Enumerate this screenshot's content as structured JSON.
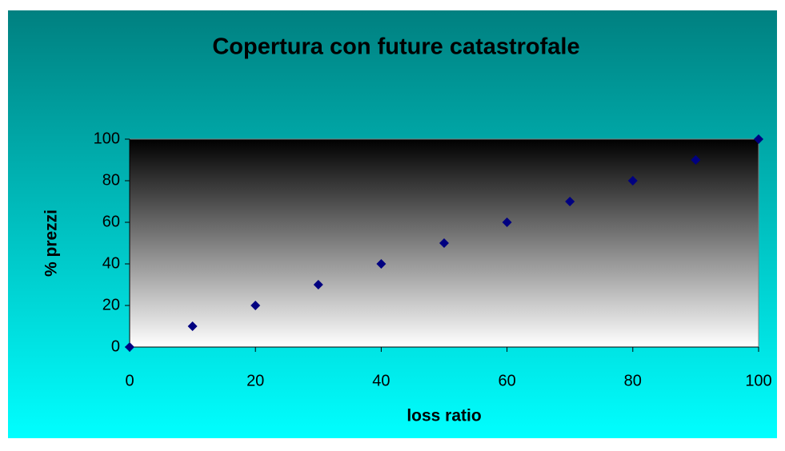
{
  "chart_data": {
    "type": "scatter",
    "title": "Copertura con future catastrofale",
    "x_label": "loss ratio",
    "y_label": "% prezzi",
    "x": [
      0,
      10,
      20,
      30,
      40,
      50,
      60,
      70,
      80,
      90,
      100
    ],
    "series": [
      {
        "color": "#000080",
        "values": [
          0,
          10,
          20,
          30,
          40,
          50,
          60,
          70,
          80,
          90,
          100
        ]
      }
    ],
    "xlim": [
      0,
      100
    ],
    "xticks": [
      0,
      20,
      40,
      60,
      80,
      100
    ],
    "ylim": [
      0,
      100
    ],
    "yticks": [
      0,
      20,
      40,
      60,
      80,
      100
    ]
  }
}
